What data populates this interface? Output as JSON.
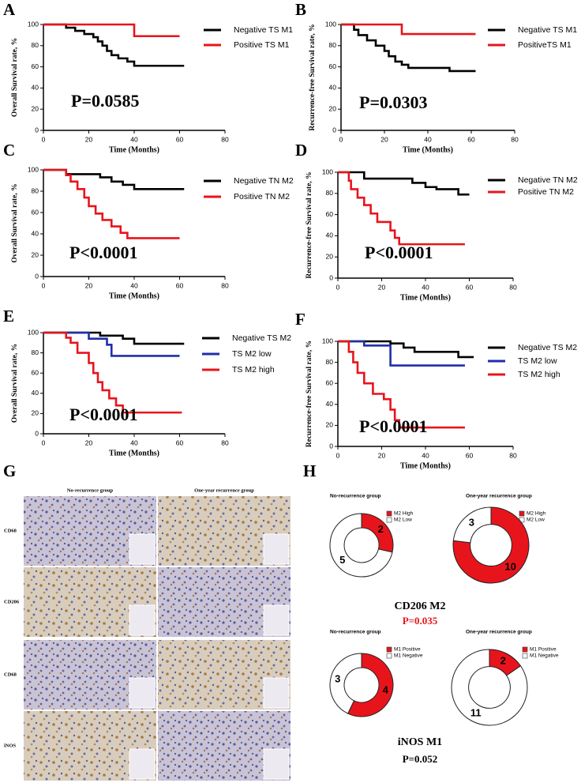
{
  "panel_labels": [
    "A",
    "B",
    "C",
    "D",
    "E",
    "F",
    "G",
    "H"
  ],
  "chart_data": [
    {
      "type": "step",
      "ylabel": "Overall Survival rate, %",
      "xlabel": "Time (Months)",
      "annotation": "P=0.0585",
      "xlim": [
        0,
        80
      ],
      "xticks": [
        0,
        20,
        40,
        60,
        80
      ],
      "ylim": [
        0,
        100
      ],
      "yticks": [
        0,
        20,
        40,
        60,
        80,
        100
      ],
      "series": [
        {
          "name": "Negative TS M1",
          "color": "#000000",
          "x": [
            0,
            10,
            10,
            14,
            14,
            18,
            18,
            22,
            22,
            24,
            24,
            26,
            26,
            28,
            28,
            30,
            30,
            33,
            33,
            37,
            37,
            40,
            40,
            62
          ],
          "values": [
            100,
            100,
            97,
            97,
            94,
            94,
            91,
            91,
            88,
            88,
            84,
            84,
            80,
            80,
            75,
            75,
            71,
            71,
            68,
            68,
            65,
            65,
            61,
            61
          ]
        },
        {
          "name": "Positive TS M1",
          "color": "#e8141c",
          "x": [
            0,
            40,
            40,
            60
          ],
          "values": [
            100,
            100,
            89,
            89
          ]
        }
      ]
    },
    {
      "type": "step",
      "ylabel": "Recurrence-free Survival rate, %",
      "xlabel": "Time (Months)",
      "annotation": "P=0.0303",
      "xlim": [
        0,
        80
      ],
      "xticks": [
        0,
        20,
        40,
        60,
        80
      ],
      "ylim": [
        0,
        100
      ],
      "yticks": [
        0,
        20,
        40,
        60,
        80,
        100
      ],
      "series": [
        {
          "name": "Negative TS M1",
          "color": "#000000",
          "x": [
            0,
            6,
            6,
            8,
            8,
            12,
            12,
            16,
            16,
            20,
            20,
            22,
            22,
            25,
            25,
            28,
            28,
            31,
            31,
            50,
            50,
            62
          ],
          "values": [
            100,
            100,
            95,
            95,
            90,
            90,
            85,
            85,
            80,
            80,
            75,
            75,
            70,
            70,
            65,
            65,
            62,
            62,
            59,
            59,
            56,
            56
          ]
        },
        {
          "name": "PositiveTS M1",
          "color": "#e8141c",
          "x": [
            0,
            28,
            28,
            62
          ],
          "values": [
            100,
            100,
            91,
            91
          ]
        }
      ]
    },
    {
      "type": "step",
      "ylabel": "Overall Survival rate, %",
      "xlabel": "Time (Months)",
      "annotation": "P<0.0001",
      "xlim": [
        0,
        80
      ],
      "xticks": [
        0,
        20,
        40,
        60,
        80
      ],
      "ylim": [
        0,
        100
      ],
      "yticks": [
        0,
        20,
        40,
        60,
        80,
        100
      ],
      "series": [
        {
          "name": "Negative TN M2",
          "color": "#000000",
          "x": [
            0,
            10,
            10,
            25,
            25,
            30,
            30,
            35,
            35,
            40,
            40,
            62
          ],
          "values": [
            100,
            100,
            96,
            96,
            93,
            93,
            89,
            89,
            86,
            86,
            82,
            82
          ]
        },
        {
          "name": "Positive TN M2",
          "color": "#e8141c",
          "x": [
            0,
            10,
            10,
            12,
            12,
            15,
            15,
            18,
            18,
            20,
            20,
            23,
            23,
            26,
            26,
            30,
            30,
            34,
            34,
            37,
            37,
            60
          ],
          "values": [
            100,
            100,
            95,
            95,
            89,
            89,
            82,
            82,
            74,
            74,
            66,
            66,
            59,
            59,
            53,
            53,
            47,
            47,
            41,
            41,
            36,
            36
          ]
        }
      ]
    },
    {
      "type": "step",
      "ylabel": "Recurrence-free Survival rate, %",
      "xlabel": "Time (Months)",
      "annotation": "P<0.0001",
      "xlim": [
        0,
        80
      ],
      "xticks": [
        0,
        20,
        40,
        60,
        80
      ],
      "ylim": [
        0,
        100
      ],
      "yticks": [
        0,
        20,
        40,
        60,
        80,
        100
      ],
      "series": [
        {
          "name": "Negative TN M2",
          "color": "#000000",
          "x": [
            0,
            12,
            12,
            34,
            34,
            40,
            40,
            45,
            45,
            55,
            55,
            60
          ],
          "values": [
            100,
            100,
            94,
            94,
            90,
            90,
            86,
            86,
            84,
            84,
            79,
            79
          ]
        },
        {
          "name": "Positive TN M2",
          "color": "#e8141c",
          "x": [
            0,
            5,
            5,
            6,
            6,
            9,
            9,
            12,
            12,
            15,
            15,
            18,
            18,
            24,
            24,
            26,
            26,
            28,
            28,
            58
          ],
          "values": [
            100,
            100,
            92,
            92,
            84,
            84,
            76,
            76,
            69,
            69,
            61,
            61,
            53,
            53,
            45,
            45,
            38,
            38,
            32,
            32
          ]
        }
      ]
    },
    {
      "type": "step",
      "ylabel": "Overall Survival rate, %",
      "xlabel": "Time (Months)",
      "annotation": "P<0.0001",
      "xlim": [
        0,
        80
      ],
      "xticks": [
        0,
        20,
        40,
        60,
        80
      ],
      "ylim": [
        0,
        100
      ],
      "yticks": [
        0,
        20,
        40,
        60,
        80,
        100
      ],
      "series": [
        {
          "name": "Negative TS M2",
          "color": "#000000",
          "x": [
            0,
            25,
            25,
            35,
            35,
            40,
            40,
            62
          ],
          "values": [
            100,
            100,
            97,
            97,
            94,
            94,
            89,
            89
          ]
        },
        {
          "name": "TS M2 low",
          "color": "#1f2fa8",
          "x": [
            0,
            20,
            20,
            28,
            28,
            30,
            30,
            60
          ],
          "values": [
            100,
            100,
            94,
            94,
            88,
            88,
            77,
            77
          ]
        },
        {
          "name": "TS M2 high",
          "color": "#e8141c",
          "x": [
            0,
            10,
            10,
            12,
            12,
            15,
            15,
            20,
            20,
            22,
            22,
            24,
            24,
            26,
            26,
            29,
            29,
            32,
            32,
            35,
            35,
            61
          ],
          "values": [
            100,
            100,
            95,
            95,
            90,
            90,
            80,
            80,
            70,
            70,
            60,
            60,
            51,
            51,
            43,
            43,
            35,
            35,
            28,
            28,
            21,
            21
          ]
        }
      ]
    },
    {
      "type": "step",
      "ylabel": "Recurrence-free Survival rate, %",
      "xlabel": "Time (Months)",
      "annotation": "P<0.0001",
      "xlim": [
        0,
        80
      ],
      "xticks": [
        0,
        20,
        40,
        60,
        80
      ],
      "ylim": [
        0,
        100
      ],
      "yticks": [
        0,
        20,
        40,
        60,
        80,
        100
      ],
      "series": [
        {
          "name": "Negative TS M2",
          "color": "#000000",
          "x": [
            0,
            24,
            24,
            30,
            30,
            35,
            35,
            55,
            55,
            62
          ],
          "values": [
            100,
            100,
            98,
            98,
            94,
            94,
            90,
            90,
            85,
            85
          ]
        },
        {
          "name": "TS M2 low",
          "color": "#1f2fa8",
          "x": [
            0,
            12,
            12,
            24,
            24,
            58
          ],
          "values": [
            100,
            100,
            96,
            96,
            77,
            77
          ]
        },
        {
          "name": "TS M2 high",
          "color": "#e8141c",
          "x": [
            0,
            5,
            5,
            7,
            7,
            9,
            9,
            12,
            12,
            16,
            16,
            21,
            21,
            24,
            24,
            26,
            26,
            28,
            28,
            58
          ],
          "values": [
            100,
            100,
            90,
            90,
            80,
            80,
            70,
            70,
            60,
            60,
            50,
            50,
            45,
            45,
            35,
            35,
            25,
            25,
            18,
            18
          ]
        }
      ]
    },
    {
      "type": "pie",
      "title": "No-recurrence group",
      "categories": [
        "M2 High",
        "M2 Low"
      ],
      "values": [
        2,
        5
      ],
      "colors": [
        "#e8141c",
        "#ffffff"
      ]
    },
    {
      "type": "pie",
      "title": "One-year recurrence group",
      "categories": [
        "M2 High",
        "M2 Low"
      ],
      "values": [
        10,
        3
      ],
      "colors": [
        "#e8141c",
        "#ffffff"
      ]
    },
    {
      "type": "pie",
      "title": "No-recurrence group",
      "categories": [
        "M1 Positive",
        "M1 Negative"
      ],
      "values": [
        4,
        3
      ],
      "colors": [
        "#e8141c",
        "#ffffff"
      ]
    },
    {
      "type": "pie",
      "title": "One-year recurrence group",
      "categories": [
        "M1 Positive",
        "M1 Negative"
      ],
      "values": [
        2,
        11
      ],
      "colors": [
        "#e8141c",
        "#ffffff"
      ]
    }
  ],
  "image_panel": {
    "columns": [
      "No-recurrence group",
      "One-year recurrence group"
    ],
    "rows": [
      "CD68",
      "CD206",
      "CD68",
      "iNOS"
    ]
  },
  "donut_groups": [
    {
      "title": "CD206 M2",
      "p_value": "P=0.035"
    },
    {
      "title": "iNOS M1",
      "p_value": "P=0.052"
    }
  ]
}
